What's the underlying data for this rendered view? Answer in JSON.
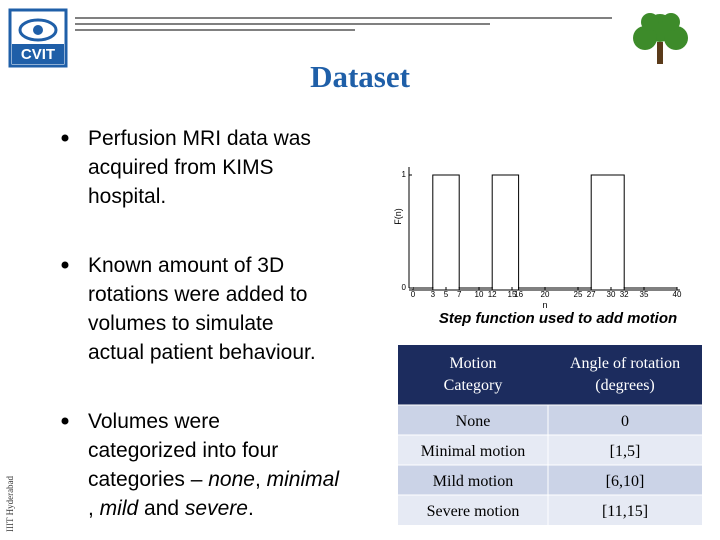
{
  "logo": "CVIT",
  "side_text": "IIIT Hyderabad",
  "title": "Dataset",
  "bullets": [
    [
      "Perfusion MRI data was",
      "acquired from KIMS",
      "hospital."
    ],
    [
      "Known amount of 3D",
      "rotations were added to",
      "volumes to simulate",
      "actual patient behaviour."
    ],
    [
      "Volumes were",
      "categorized into four",
      "categories – ",
      "none",
      ", ",
      "minimal",
      ", ",
      "mild",
      " and ",
      "severe",
      "."
    ]
  ],
  "chart_data": {
    "type": "line",
    "x": [
      0,
      3,
      3,
      7,
      7,
      12,
      12,
      16,
      16,
      27,
      27,
      32,
      32,
      40
    ],
    "values": [
      0,
      0,
      1,
      1,
      0,
      0,
      1,
      1,
      0,
      0,
      1,
      1,
      0,
      0
    ],
    "color": "#000000",
    "xlim": [
      0,
      40
    ],
    "ylim": [
      0,
      1
    ],
    "xticks": [
      0,
      3,
      5,
      7,
      10,
      12,
      15,
      16,
      20,
      25,
      27,
      30,
      32,
      35,
      40
    ],
    "yticks": [
      0,
      1
    ],
    "xlabel": "n",
    "ylabel": "F(n)",
    "caption": "Step function used to add motion"
  },
  "table": {
    "header": [
      "Motion Category",
      "Angle of rotation (degrees)"
    ],
    "rows": [
      [
        "None",
        "0"
      ],
      [
        "Minimal motion",
        "[1,5]"
      ],
      [
        "Mild motion",
        "[6,10]"
      ],
      [
        "Severe motion",
        "[11,15]"
      ]
    ]
  }
}
